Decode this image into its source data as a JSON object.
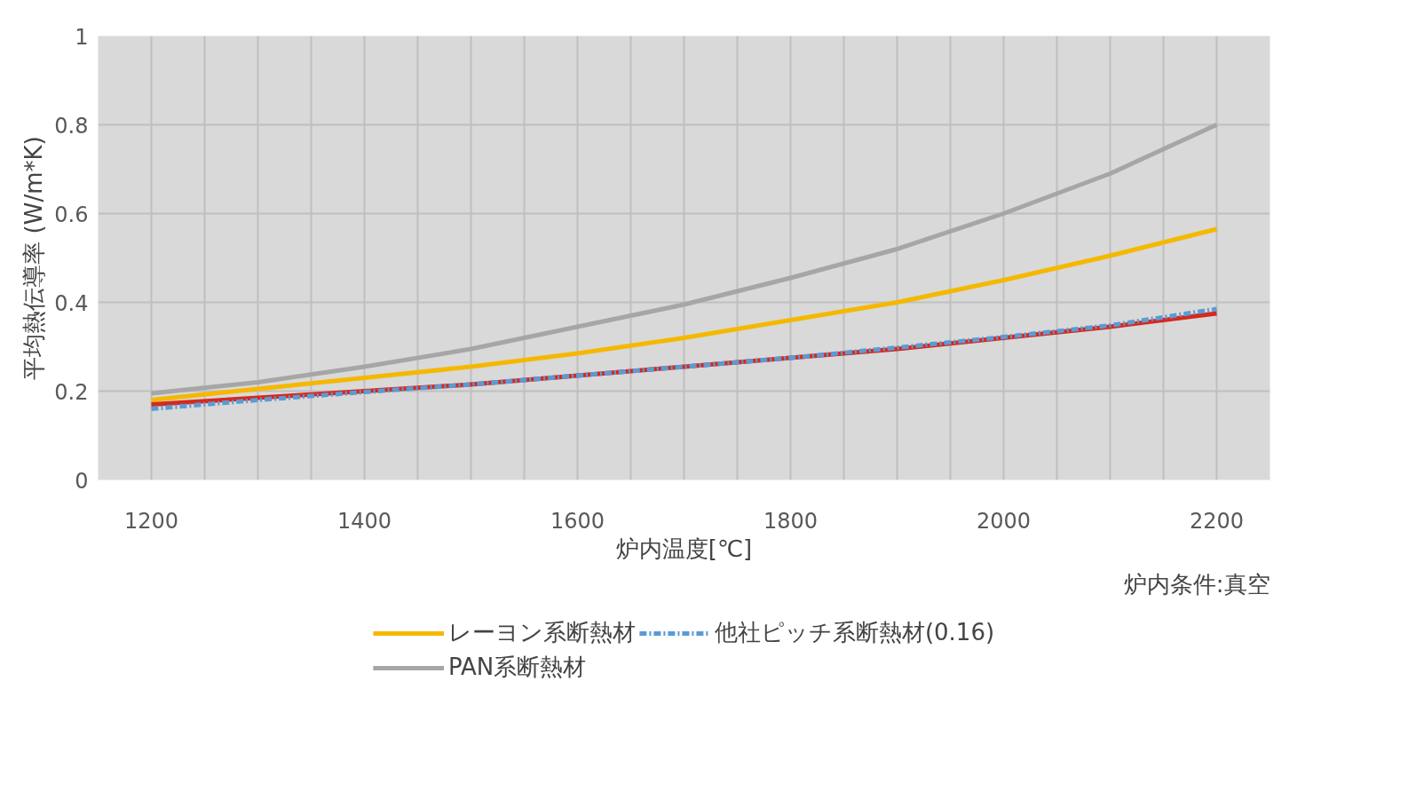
{
  "chart_data": {
    "type": "line",
    "xlabel": "炉内温度[℃]",
    "ylabel": "平均熱伝導率 (W/m*K)",
    "annotations": [
      "炉内条件:真空"
    ],
    "x": [
      1200,
      1300,
      1400,
      1500,
      1600,
      1700,
      1800,
      1900,
      2000,
      2100,
      2200
    ],
    "series": [
      {
        "name": "レーヨン系断熱材",
        "color": "#f5b800",
        "values": [
          0.18,
          0.205,
          0.23,
          0.255,
          0.285,
          0.32,
          0.36,
          0.4,
          0.45,
          0.505,
          0.565
        ]
      },
      {
        "name": "PAN系断熱材",
        "color": "#a6a6a6",
        "values": [
          0.195,
          0.22,
          0.255,
          0.295,
          0.345,
          0.395,
          0.455,
          0.52,
          0.6,
          0.69,
          0.8
        ]
      },
      {
        "color": "#d42a1f",
        "values": [
          0.17,
          0.185,
          0.2,
          0.215,
          0.235,
          0.255,
          0.275,
          0.295,
          0.32,
          0.345,
          0.375
        ]
      },
      {
        "name": "他社ピッチ系断熱材(0.16)",
        "color": "#5b9bd5",
        "line_style": "dashed",
        "values": [
          0.16,
          0.18,
          0.198,
          0.215,
          0.235,
          0.255,
          0.275,
          0.298,
          0.322,
          0.348,
          0.385
        ]
      }
    ],
    "xlim": [
      1150,
      2250
    ],
    "ylim": [
      0,
      1
    ],
    "xticks": [
      1200,
      {
        "value": 1250,
        "label": null
      },
      {
        "value": 1300,
        "label": null
      },
      {
        "value": 1350,
        "label": null
      },
      1400,
      {
        "value": 1450,
        "label": null
      },
      {
        "value": 1500,
        "label": null
      },
      {
        "value": 1550,
        "label": null
      },
      1600,
      {
        "value": 1650,
        "label": null
      },
      {
        "value": 1700,
        "label": null
      },
      {
        "value": 1750,
        "label": null
      },
      1800,
      {
        "value": 1850,
        "label": null
      },
      {
        "value": 1900,
        "label": null
      },
      {
        "value": 1950,
        "label": null
      },
      2000,
      {
        "value": 2050,
        "label": null
      },
      {
        "value": 2100,
        "label": null
      },
      {
        "value": 2150,
        "label": null
      },
      2200
    ],
    "yticks": [
      0,
      0.2,
      0.4,
      0.6,
      0.8,
      1
    ],
    "grid": true,
    "legend": "bottom",
    "line_style": "solid"
  }
}
